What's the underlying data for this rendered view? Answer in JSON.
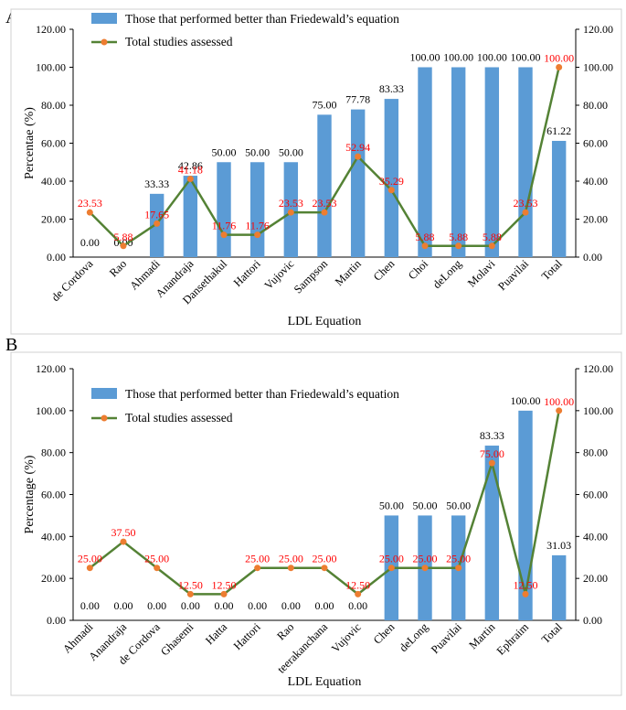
{
  "panels": [
    {
      "letter": "A",
      "chart_data": {
        "type": "bar+line",
        "categories": [
          "de Cordova",
          "Rao",
          "Ahmadi",
          "Anandraja",
          "Dansethakul",
          "Hattori",
          "Vujovic",
          "Sampson",
          "Martin",
          "Chen",
          "Choi",
          "deLong",
          "Molavi",
          "Puavilai",
          "Total"
        ],
        "series": [
          {
            "name": "Those that performed better than Friedewald’s equation",
            "kind": "bar",
            "color": "#5b9bd5",
            "values": [
              0.0,
              0.0,
              33.33,
              42.86,
              50.0,
              50.0,
              50.0,
              75.0,
              77.78,
              83.33,
              100.0,
              100.0,
              100.0,
              100.0,
              61.22
            ],
            "labels": [
              "0.00",
              "0.00",
              "33.33",
              "42.86",
              "50.00",
              "50.00",
              "50.00",
              "75.00",
              "77.78",
              "83.33",
              "100.00",
              "100.00",
              "100.00",
              "100.00",
              "61.22"
            ]
          },
          {
            "name": "Total studies assessed",
            "kind": "line",
            "color": "#548235",
            "marker": "#ed7d31",
            "values": [
              23.53,
              5.88,
              17.65,
              41.18,
              11.76,
              11.76,
              23.53,
              23.53,
              52.94,
              35.29,
              5.88,
              5.88,
              5.88,
              23.53,
              100.0
            ],
            "labels": [
              "23.53",
              "5.88",
              "17.65",
              "41.18",
              "11.76",
              "11.76",
              "23.53",
              "23.53",
              "52.94",
              "35.29",
              "5.88",
              "5.88",
              "5.88",
              "23.53",
              "100.00"
            ]
          }
        ],
        "ylabel": "Percentae (%)",
        "xlabel": "LDL Equation",
        "ylim": [
          0,
          120
        ],
        "yticks": [
          "0.00",
          "20.00",
          "40.00",
          "60.00",
          "80.00",
          "100.00",
          "120.00"
        ],
        "legend": "top-left"
      }
    },
    {
      "letter": "B",
      "chart_data": {
        "type": "bar+line",
        "categories": [
          "Ahmadi",
          "Anandraja",
          "de Cordova",
          "Ghasemi",
          "Hatta",
          "Hattori",
          "Rao",
          "teerakanchana",
          "Vujovic",
          "Chen",
          "deLong",
          "Puavilai",
          "Martin",
          "Ephraim",
          "Total"
        ],
        "series": [
          {
            "name": "Those that performed better than Friedewald’s equation",
            "kind": "bar",
            "color": "#5b9bd5",
            "values": [
              0.0,
              0.0,
              0.0,
              0.0,
              0.0,
              0.0,
              0.0,
              0.0,
              0.0,
              50.0,
              50.0,
              50.0,
              83.33,
              100.0,
              31.03
            ],
            "labels": [
              "0.00",
              "0.00",
              "0.00",
              "0.00",
              "0.00",
              "0.00",
              "0.00",
              "0.00",
              "0.00",
              "50.00",
              "50.00",
              "50.00",
              "83.33",
              "100.00",
              "31.03"
            ]
          },
          {
            "name": "Total studies assessed",
            "kind": "line",
            "color": "#548235",
            "marker": "#ed7d31",
            "values": [
              25.0,
              37.5,
              25.0,
              12.5,
              12.5,
              25.0,
              25.0,
              25.0,
              12.5,
              25.0,
              25.0,
              25.0,
              75.0,
              12.5,
              100.0
            ],
            "labels": [
              "25.00",
              "37.50",
              "25.00",
              "12.50",
              "12.50",
              "25.00",
              "25.00",
              "25.00",
              "12.50",
              "25.00",
              "25.00",
              "25.00",
              "75.00",
              "12.50",
              "100.00"
            ]
          }
        ],
        "ylabel": "Percentage (%)",
        "xlabel": "LDL Equation",
        "ylim": [
          0,
          120
        ],
        "yticks": [
          "0.00",
          "20.00",
          "40.00",
          "60.00",
          "80.00",
          "100.00",
          "120.00"
        ],
        "legend": "top-left"
      }
    }
  ]
}
